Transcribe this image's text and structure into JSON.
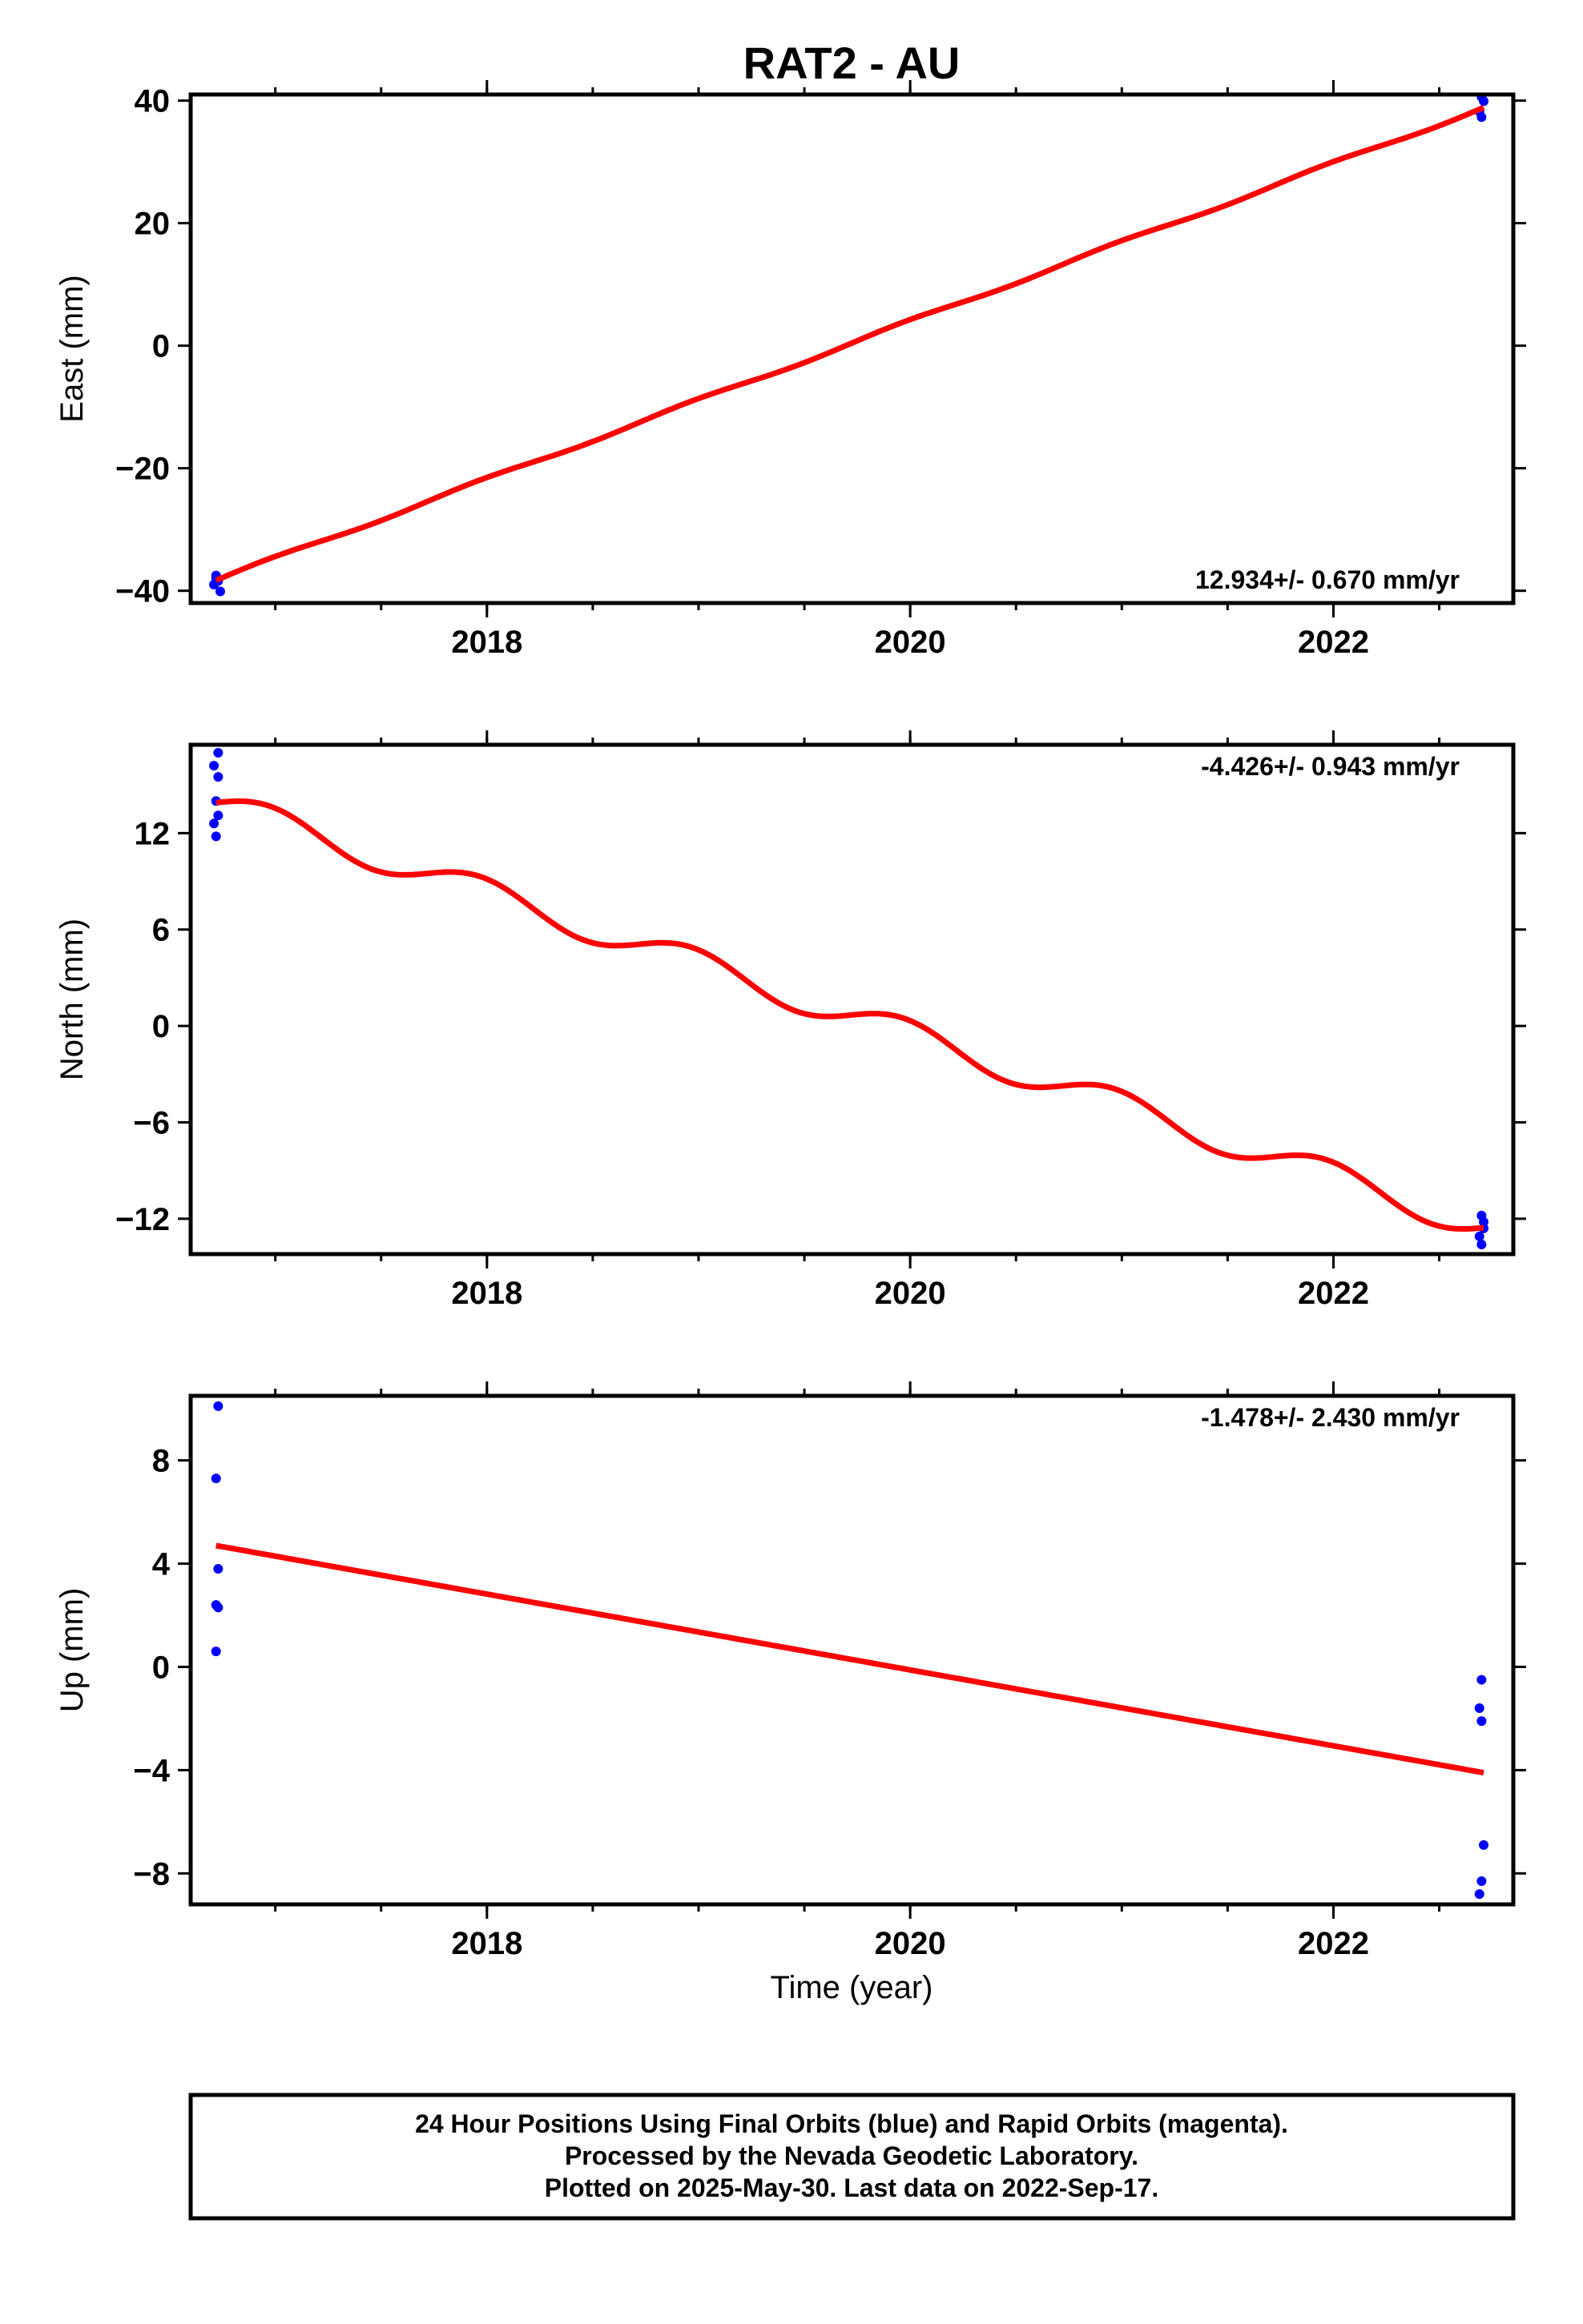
{
  "title": "RAT2 - AU",
  "colors": {
    "final_orbits": "#0000ff",
    "rapid_orbits": "#ff00ff",
    "trend": "#ff0000",
    "frame": "#000000"
  },
  "xlabel": "Time (year)",
  "footer": {
    "line1": "24 Hour Positions Using Final Orbits (blue) and Rapid Orbits (magenta).",
    "line2": "Processed by the Nevada Geodetic Laboratory.",
    "line3": "Plotted on 2025-May-30. Last data on 2022-Sep-17."
  },
  "chart_data": [
    {
      "type": "scatter",
      "name": "east",
      "ylabel": "East (mm)",
      "xlim": [
        2016.6,
        2022.85
      ],
      "ylim": [
        -42,
        41
      ],
      "xticks": [
        2018,
        2020,
        2022
      ],
      "xtick_labels": [
        "2018",
        "2020",
        "2022"
      ],
      "yticks": [
        40,
        20,
        0,
        -20,
        -40
      ],
      "ytick_labels": [
        "40",
        "20",
        "0",
        "−20",
        "−40"
      ],
      "rate_text": "12.934+/- 0.670 mm/yr",
      "rate_position": "bottom-right",
      "points": [
        {
          "x": 2016.72,
          "y": -37.5
        },
        {
          "x": 2016.73,
          "y": -38.4
        },
        {
          "x": 2016.71,
          "y": -39.0
        },
        {
          "x": 2016.74,
          "y": -40.1
        },
        {
          "x": 2016.72,
          "y": -38.0
        },
        {
          "x": 2022.7,
          "y": 40.6
        },
        {
          "x": 2022.71,
          "y": 39.9
        },
        {
          "x": 2022.69,
          "y": 38.2
        },
        {
          "x": 2022.7,
          "y": 37.3
        }
      ],
      "trend": {
        "x": [
          2016.72,
          2022.71
        ],
        "y": [
          -38.3,
          38.9
        ],
        "seasonal_amplitude": 0.3
      }
    },
    {
      "type": "scatter",
      "name": "north",
      "ylabel": "North (mm)",
      "xlim": [
        2016.6,
        2022.85
      ],
      "ylim": [
        -14.2,
        17.5
      ],
      "xticks": [
        2018,
        2020,
        2022
      ],
      "xtick_labels": [
        "2018",
        "2020",
        "2022"
      ],
      "yticks": [
        12,
        6,
        0,
        -6,
        -12
      ],
      "ytick_labels": [
        "12",
        "6",
        "0",
        "−6",
        "−12"
      ],
      "rate_text": "-4.426+/- 0.943 mm/yr",
      "rate_position": "top-right",
      "points": [
        {
          "x": 2016.73,
          "y": 17.0
        },
        {
          "x": 2016.71,
          "y": 16.2
        },
        {
          "x": 2016.73,
          "y": 15.5
        },
        {
          "x": 2016.72,
          "y": 14.0
        },
        {
          "x": 2016.73,
          "y": 13.1
        },
        {
          "x": 2016.71,
          "y": 12.6
        },
        {
          "x": 2016.72,
          "y": 11.8
        },
        {
          "x": 2022.7,
          "y": -11.8
        },
        {
          "x": 2022.71,
          "y": -12.6
        },
        {
          "x": 2022.69,
          "y": -13.1
        },
        {
          "x": 2022.7,
          "y": -13.6
        },
        {
          "x": 2022.71,
          "y": -12.2
        }
      ],
      "trend": {
        "x": [
          2016.72,
          2022.71
        ],
        "y": [
          13.9,
          -12.5
        ],
        "seasonal_amplitude": 0.9
      }
    },
    {
      "type": "scatter",
      "name": "up",
      "ylabel": "Up (mm)",
      "xlim": [
        2016.6,
        2022.85
      ],
      "ylim": [
        -9.2,
        10.5
      ],
      "xticks": [
        2018,
        2020,
        2022
      ],
      "xtick_labels": [
        "2018",
        "2020",
        "2022"
      ],
      "yticks": [
        8,
        4,
        0,
        -4,
        -8
      ],
      "ytick_labels": [
        "8",
        "4",
        "0",
        "−4",
        "−8"
      ],
      "rate_text": "-1.478+/- 2.430 mm/yr",
      "rate_position": "top-right",
      "points": [
        {
          "x": 2016.73,
          "y": 10.1
        },
        {
          "x": 2016.72,
          "y": 7.3
        },
        {
          "x": 2016.73,
          "y": 3.8
        },
        {
          "x": 2016.72,
          "y": 2.4
        },
        {
          "x": 2016.73,
          "y": 2.3
        },
        {
          "x": 2016.72,
          "y": 0.6
        },
        {
          "x": 2022.7,
          "y": -0.5
        },
        {
          "x": 2022.69,
          "y": -1.6
        },
        {
          "x": 2022.7,
          "y": -2.1
        },
        {
          "x": 2022.71,
          "y": -6.9
        },
        {
          "x": 2022.7,
          "y": -8.3
        },
        {
          "x": 2022.69,
          "y": -8.8
        }
      ],
      "trend": {
        "x": [
          2016.72,
          2022.71
        ],
        "y": [
          4.7,
          -4.1
        ],
        "seasonal_amplitude": 0
      }
    }
  ]
}
